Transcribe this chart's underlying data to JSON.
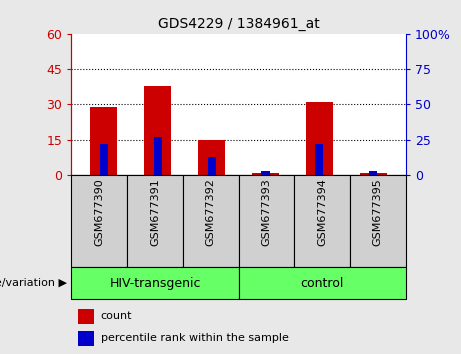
{
  "title": "GDS4229 / 1384961_at",
  "samples": [
    "GSM677390",
    "GSM677391",
    "GSM677392",
    "GSM677393",
    "GSM677394",
    "GSM677395"
  ],
  "count_values": [
    29,
    38,
    15,
    1,
    31,
    1
  ],
  "percentile_values": [
    22,
    27,
    13,
    3,
    22,
    3
  ],
  "left_ylim": [
    0,
    60
  ],
  "right_ylim": [
    0,
    100
  ],
  "left_yticks": [
    0,
    15,
    30,
    45,
    60
  ],
  "right_yticks": [
    0,
    25,
    50,
    75,
    100
  ],
  "right_yticklabels": [
    "0",
    "25",
    "50",
    "75",
    "100%"
  ],
  "left_yticklabels": [
    "0",
    "15",
    "30",
    "45",
    "60"
  ],
  "grid_lines": [
    15,
    30,
    45
  ],
  "groups": [
    {
      "label": "HIV-transgenic",
      "start": 0,
      "end": 3
    },
    {
      "label": "control",
      "start": 3,
      "end": 6
    }
  ],
  "count_color": "#CC0000",
  "percentile_color": "#0000CC",
  "background_color": "#e8e8e8",
  "plot_bg_color": "#ffffff",
  "xtick_bg_color": "#d0d0d0",
  "group_bg_color": "#66FF66",
  "legend_count_label": "count",
  "legend_percentile_label": "percentile rank within the sample",
  "left_axis_color": "#CC0000",
  "right_axis_color": "#0000CC",
  "group_label": "genotype/variation"
}
